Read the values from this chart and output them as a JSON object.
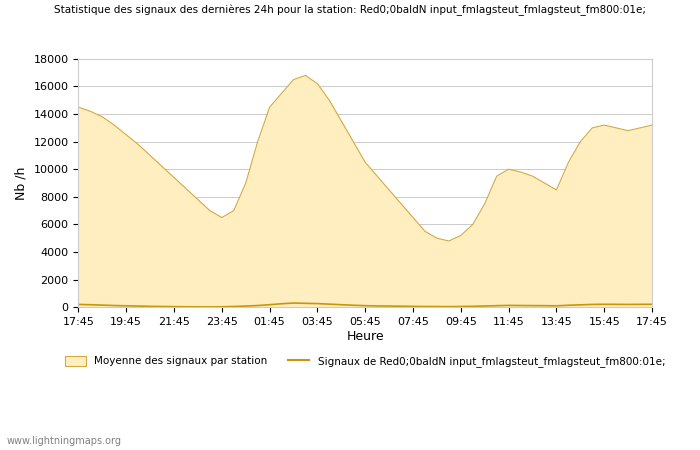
{
  "title": "Statistique des signaux des dernières 24h pour la station: Red0;0baldN input_fmlagsteut_fmlagsteut_fm800:01e;",
  "xlabel": "Heure",
  "ylabel": "Nb /h",
  "watermark": "www.lightningmaps.org",
  "ylim": [
    0,
    18000
  ],
  "yticks": [
    0,
    2000,
    4000,
    6000,
    8000,
    10000,
    12000,
    14000,
    16000,
    18000
  ],
  "xtick_labels": [
    "17:45",
    "19:45",
    "21:45",
    "23:45",
    "01:45",
    "03:45",
    "05:45",
    "07:45",
    "09:45",
    "11:45",
    "13:45",
    "15:45",
    "17:45"
  ],
  "legend_patch_label": "Moyenne des signaux par station",
  "legend_line_label": "Signaux de Red0;0baldN input_fmlagsteut_fmlagsteut_fm800:01e;",
  "fill_color": "#ffeec0",
  "fill_edge_color": "#d4a940",
  "line_color": "#c8960a",
  "background_color": "#ffffff",
  "grid_color": "#cccccc",
  "x_values": [
    0,
    1,
    2,
    3,
    4,
    5,
    6,
    7,
    8,
    9,
    10,
    11,
    12,
    13,
    14,
    15,
    16,
    17,
    18,
    19,
    20,
    21,
    22,
    23,
    24,
    25,
    26,
    27,
    28,
    29,
    30,
    31,
    32,
    33,
    34,
    35,
    36,
    37,
    38,
    39,
    40,
    41,
    42,
    43,
    44,
    45,
    46,
    47,
    48
  ],
  "fill_values": [
    14500,
    14200,
    13800,
    13200,
    12500,
    11800,
    11000,
    10200,
    9400,
    8600,
    7800,
    7000,
    6500,
    7000,
    9000,
    12000,
    14500,
    15500,
    16500,
    16800,
    16200,
    15000,
    13500,
    12000,
    10500,
    9500,
    8500,
    7500,
    6500,
    5500,
    5000,
    4800,
    5200,
    6000,
    7500,
    9500,
    10000,
    9800,
    9500,
    9000,
    8500,
    10500,
    12000,
    13000,
    13200,
    13000,
    12800,
    13000,
    13200
  ],
  "line_values": [
    200,
    180,
    150,
    120,
    100,
    80,
    60,
    50,
    40,
    30,
    25,
    20,
    30,
    50,
    80,
    120,
    180,
    250,
    300,
    280,
    260,
    220,
    180,
    140,
    110,
    90,
    80,
    70,
    60,
    50,
    45,
    40,
    50,
    65,
    85,
    110,
    130,
    120,
    115,
    110,
    100,
    140,
    170,
    200,
    210,
    205,
    200,
    205,
    210
  ]
}
